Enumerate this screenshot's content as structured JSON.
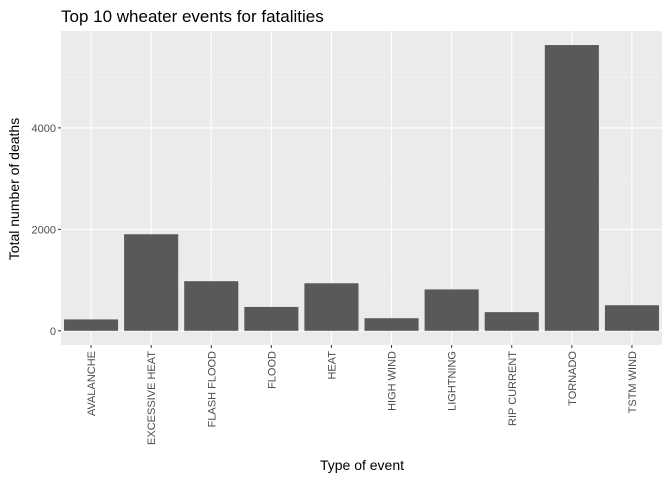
{
  "chart_data": {
    "type": "bar",
    "title": "Top 10 wheater events for fatalities",
    "xlabel": "Type of event",
    "ylabel": "Total number of deaths",
    "categories": [
      "AVALANCHE",
      "EXCESSIVE HEAT",
      "FLASH FLOOD",
      "FLOOD",
      "HEAT",
      "HIGH WIND",
      "LIGHTNING",
      "RIP CURRENT",
      "TORNADO",
      "TSTM WIND"
    ],
    "values": [
      224,
      1903,
      978,
      470,
      937,
      248,
      816,
      368,
      5633,
      504
    ],
    "yticks": [
      0,
      2000,
      4000
    ],
    "ytick_labels": [
      "0",
      "2000",
      "4000"
    ],
    "ylim": [
      -280,
      5910
    ],
    "grid": true,
    "legend": "none",
    "colors": {
      "bar": "#595959",
      "panel_background": "#ebebeb",
      "grid_major": "#ffffff",
      "grid_minor": "#f5f5f5"
    }
  }
}
